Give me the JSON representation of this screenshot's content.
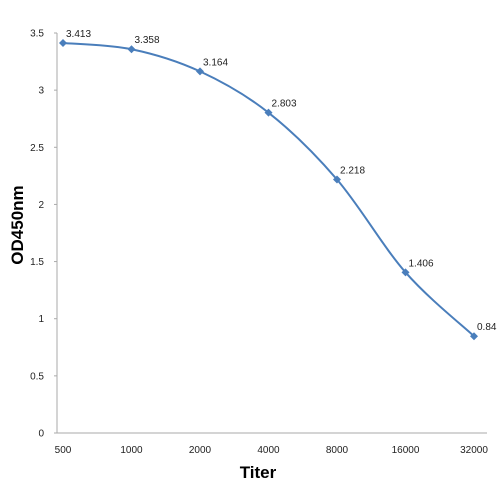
{
  "chart_data": {
    "type": "line",
    "title": "",
    "xlabel": "Titer",
    "ylabel": "OD450nm",
    "categories": [
      "500",
      "1000",
      "2000",
      "4000",
      "8000",
      "16000",
      "32000"
    ],
    "series": [
      {
        "values": [
          3.413,
          3.358,
          3.164,
          2.803,
          2.218,
          1.406,
          0.847
        ],
        "labels": [
          "3.413",
          "3.358",
          "3.164",
          "2.803",
          "2.218",
          "1.406",
          "0.847"
        ],
        "color": "#4a7ebb"
      }
    ],
    "ylim": [
      0,
      3.5
    ],
    "yticks": [
      "0",
      "0.5",
      "1",
      "1.5",
      "2",
      "2.5",
      "3",
      "3.5"
    ],
    "grid": false,
    "legend": "none",
    "smooth": true,
    "marker": "diamond"
  }
}
